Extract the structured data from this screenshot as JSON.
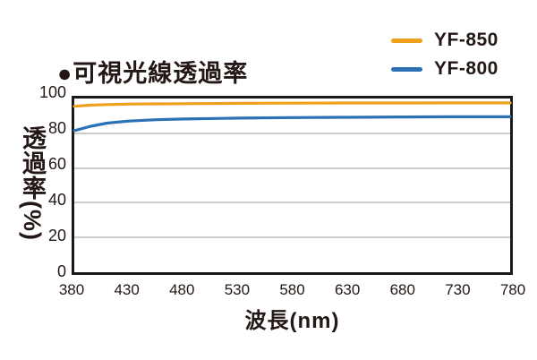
{
  "title": "●可視光線透過率",
  "legend": [
    {
      "label": "YF-850",
      "color": "#efa11c"
    },
    {
      "label": "YF-800",
      "color": "#2a72b5"
    }
  ],
  "chart_data": {
    "type": "line",
    "title": "可視光線透過率",
    "xlabel": "波長(nm)",
    "ylabel": "透過率(%)",
    "xlim": [
      380,
      780
    ],
    "ylim": [
      0,
      100
    ],
    "xticks": [
      380,
      430,
      480,
      530,
      580,
      630,
      680,
      730,
      780
    ],
    "yticks": [
      0,
      20,
      40,
      60,
      80,
      100
    ],
    "grid": "horizontal",
    "legend_position": "top-right",
    "x": [
      380,
      395,
      410,
      430,
      455,
      480,
      530,
      580,
      630,
      680,
      730,
      780
    ],
    "series": [
      {
        "name": "YF-850",
        "color": "#efa11c",
        "values": [
          95.5,
          96.2,
          96.5,
          96.8,
          96.9,
          97.0,
          97.2,
          97.3,
          97.4,
          97.4,
          97.5,
          97.5
        ]
      },
      {
        "name": "YF-800",
        "color": "#2a72b5",
        "values": [
          81.5,
          84.0,
          85.8,
          87.0,
          87.8,
          88.2,
          88.7,
          89.0,
          89.2,
          89.4,
          89.5,
          89.5
        ]
      }
    ]
  },
  "colors": {
    "text": "#231815",
    "grid": "#cccccc",
    "axis_frame": "#1a1a1a",
    "background": "#ffffff"
  }
}
